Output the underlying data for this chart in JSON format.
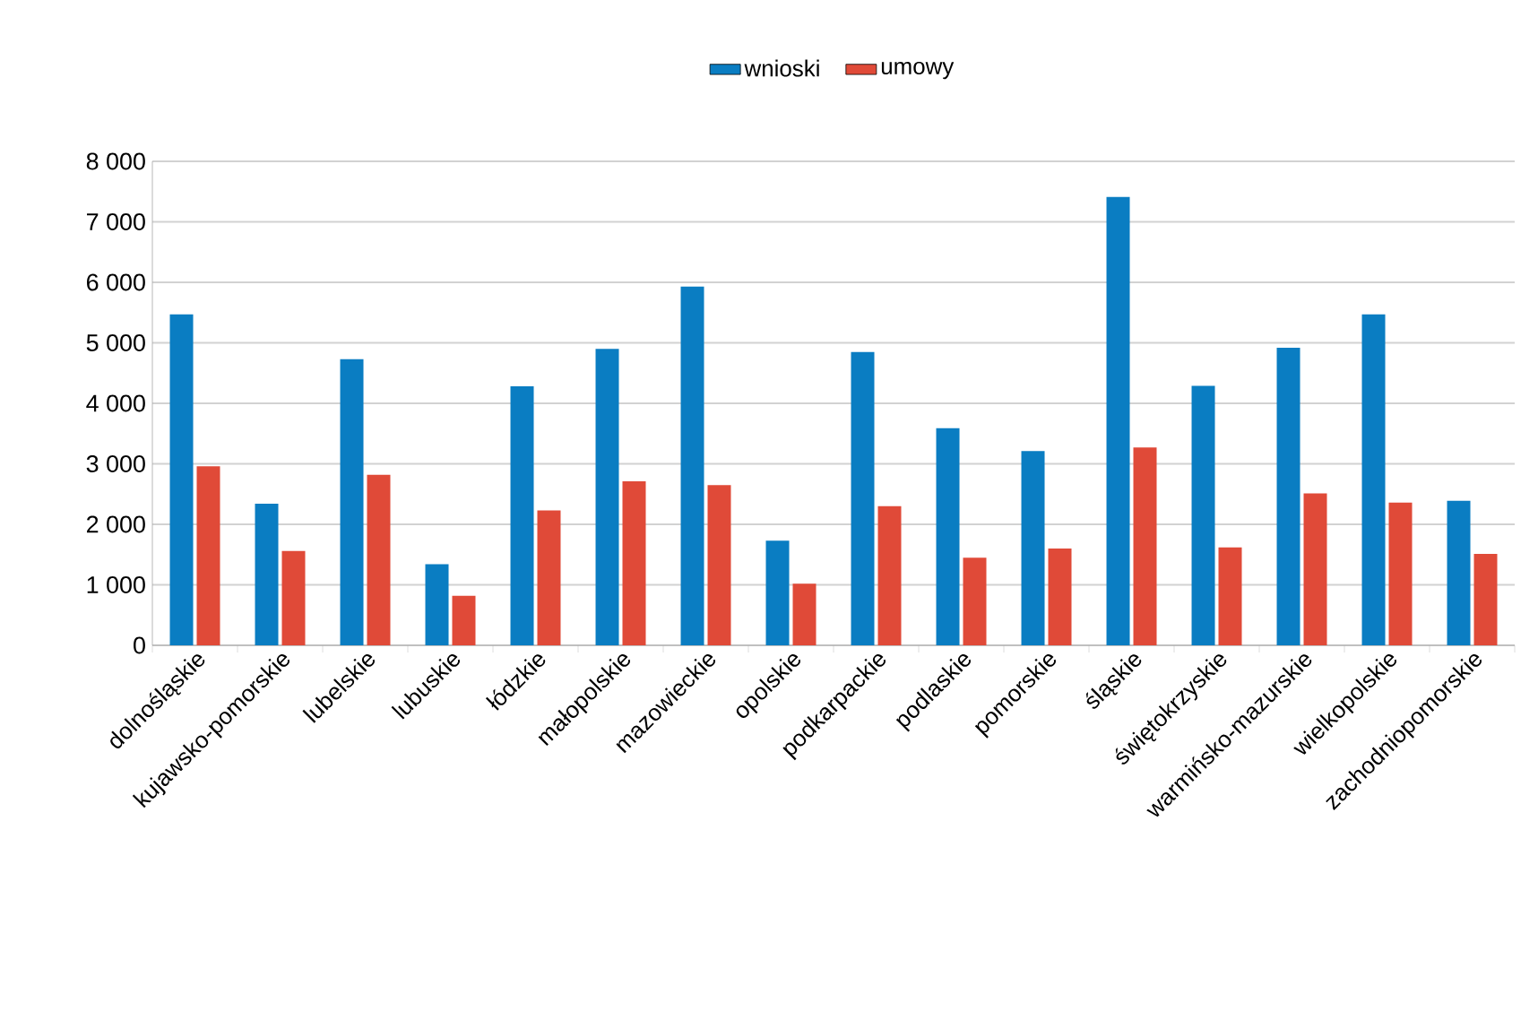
{
  "chart_data": {
    "type": "bar",
    "categories": [
      "dolnośląskie",
      "kujawsko-pomorskie",
      "lubelskie",
      "lubuskie",
      "łódzkie",
      "małopolskie",
      "mazowieckie",
      "opolskie",
      "podkarpackie",
      "podlaskie",
      "pomorskie",
      "śląskie",
      "świętokrzyskie",
      "warmińsko-mazurskie",
      "wielkopolskie",
      "zachodniopomorskie"
    ],
    "series": [
      {
        "name": "wnioski",
        "color": "#0a7dc2",
        "values": [
          5470,
          2340,
          4730,
          1340,
          4280,
          4900,
          5930,
          1730,
          4850,
          3590,
          3210,
          7410,
          4290,
          4920,
          5470,
          2390
        ]
      },
      {
        "name": "umowy",
        "color": "#e04a38",
        "values": [
          2960,
          1560,
          2820,
          820,
          2230,
          2710,
          2650,
          1020,
          2300,
          1450,
          1600,
          3270,
          1620,
          2510,
          2360,
          1510
        ]
      }
    ],
    "ylim": [
      0,
      8000
    ],
    "yticks": [
      {
        "value": 0,
        "label": "0"
      },
      {
        "value": 1000,
        "label": "1 000"
      },
      {
        "value": 2000,
        "label": "2 000"
      },
      {
        "value": 3000,
        "label": "3 000"
      },
      {
        "value": 4000,
        "label": "4 000"
      },
      {
        "value": 5000,
        "label": "5 000"
      },
      {
        "value": 6000,
        "label": "6 000"
      },
      {
        "value": 7000,
        "label": "7 000"
      },
      {
        "value": 8000,
        "label": "8 000"
      }
    ],
    "grid": "y",
    "legend": "top"
  }
}
